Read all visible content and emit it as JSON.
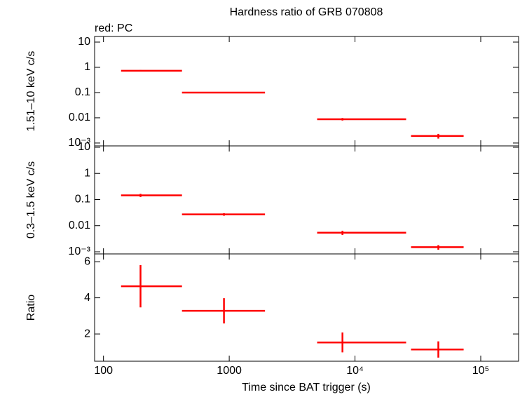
{
  "chart_data": [
    {
      "type": "errorbar",
      "title": "Hardness ratio of GRB 070808",
      "annotation": "red: PC",
      "ylabel": "1.51–10 keV c/s",
      "yscale": "log",
      "ylim": [
        0.00077,
        16.7
      ],
      "yticks": [
        10,
        1,
        0.1,
        0.01,
        {
          "value": 0.001,
          "label": "10⁻³"
        }
      ],
      "series": [
        {
          "color": "#ff0000",
          "x": [
            197,
            908,
            7950,
            46000
          ],
          "x_min": [
            138,
            421,
            5000,
            27900
          ],
          "x_max": [
            421,
            1925,
            25500,
            73100
          ],
          "values": [
            0.73,
            0.1,
            0.0088,
            0.0019
          ],
          "y_err": [
            0.05,
            0.005,
            0.001,
            0.0004
          ]
        }
      ]
    },
    {
      "type": "errorbar",
      "ylabel": "0.3–1.5 keV c/s",
      "yscale": "log",
      "ylim": [
        0.00083,
        11.3
      ],
      "yticks": [
        10,
        1,
        0.1,
        0.01,
        {
          "value": 0.001,
          "label": "10⁻³"
        }
      ],
      "series": [
        {
          "color": "#ff0000",
          "x": [
            197,
            908,
            7950,
            46000
          ],
          "x_min": [
            138,
            421,
            5000,
            27900
          ],
          "x_max": [
            421,
            1925,
            25500,
            73100
          ],
          "values": [
            0.145,
            0.027,
            0.0054,
            0.0015
          ],
          "y_err": [
            0.02,
            0.003,
            0.001,
            0.0003
          ]
        }
      ]
    },
    {
      "type": "errorbar",
      "ylabel": "Ratio",
      "yscale": "linear",
      "xlabel": "Time since BAT trigger (s)",
      "xscale": "log",
      "xlim": [
        85,
        200000
      ],
      "xticks": [
        100,
        1000,
        {
          "value": 10000,
          "label": "10⁴"
        },
        {
          "value": 100000,
          "label": "10⁵"
        }
      ],
      "ylim": [
        0.49,
        6.43
      ],
      "yticks": [
        2,
        4,
        6
      ],
      "series": [
        {
          "color": "#ff0000",
          "x": [
            197,
            908,
            7950,
            46000
          ],
          "x_min": [
            138,
            421,
            5000,
            27900
          ],
          "x_max": [
            421,
            1925,
            25500,
            73100
          ],
          "values": [
            4.64,
            3.28,
            1.53,
            1.14
          ],
          "y_err": [
            1.17,
            0.7,
            0.55,
            0.45
          ]
        }
      ]
    }
  ]
}
